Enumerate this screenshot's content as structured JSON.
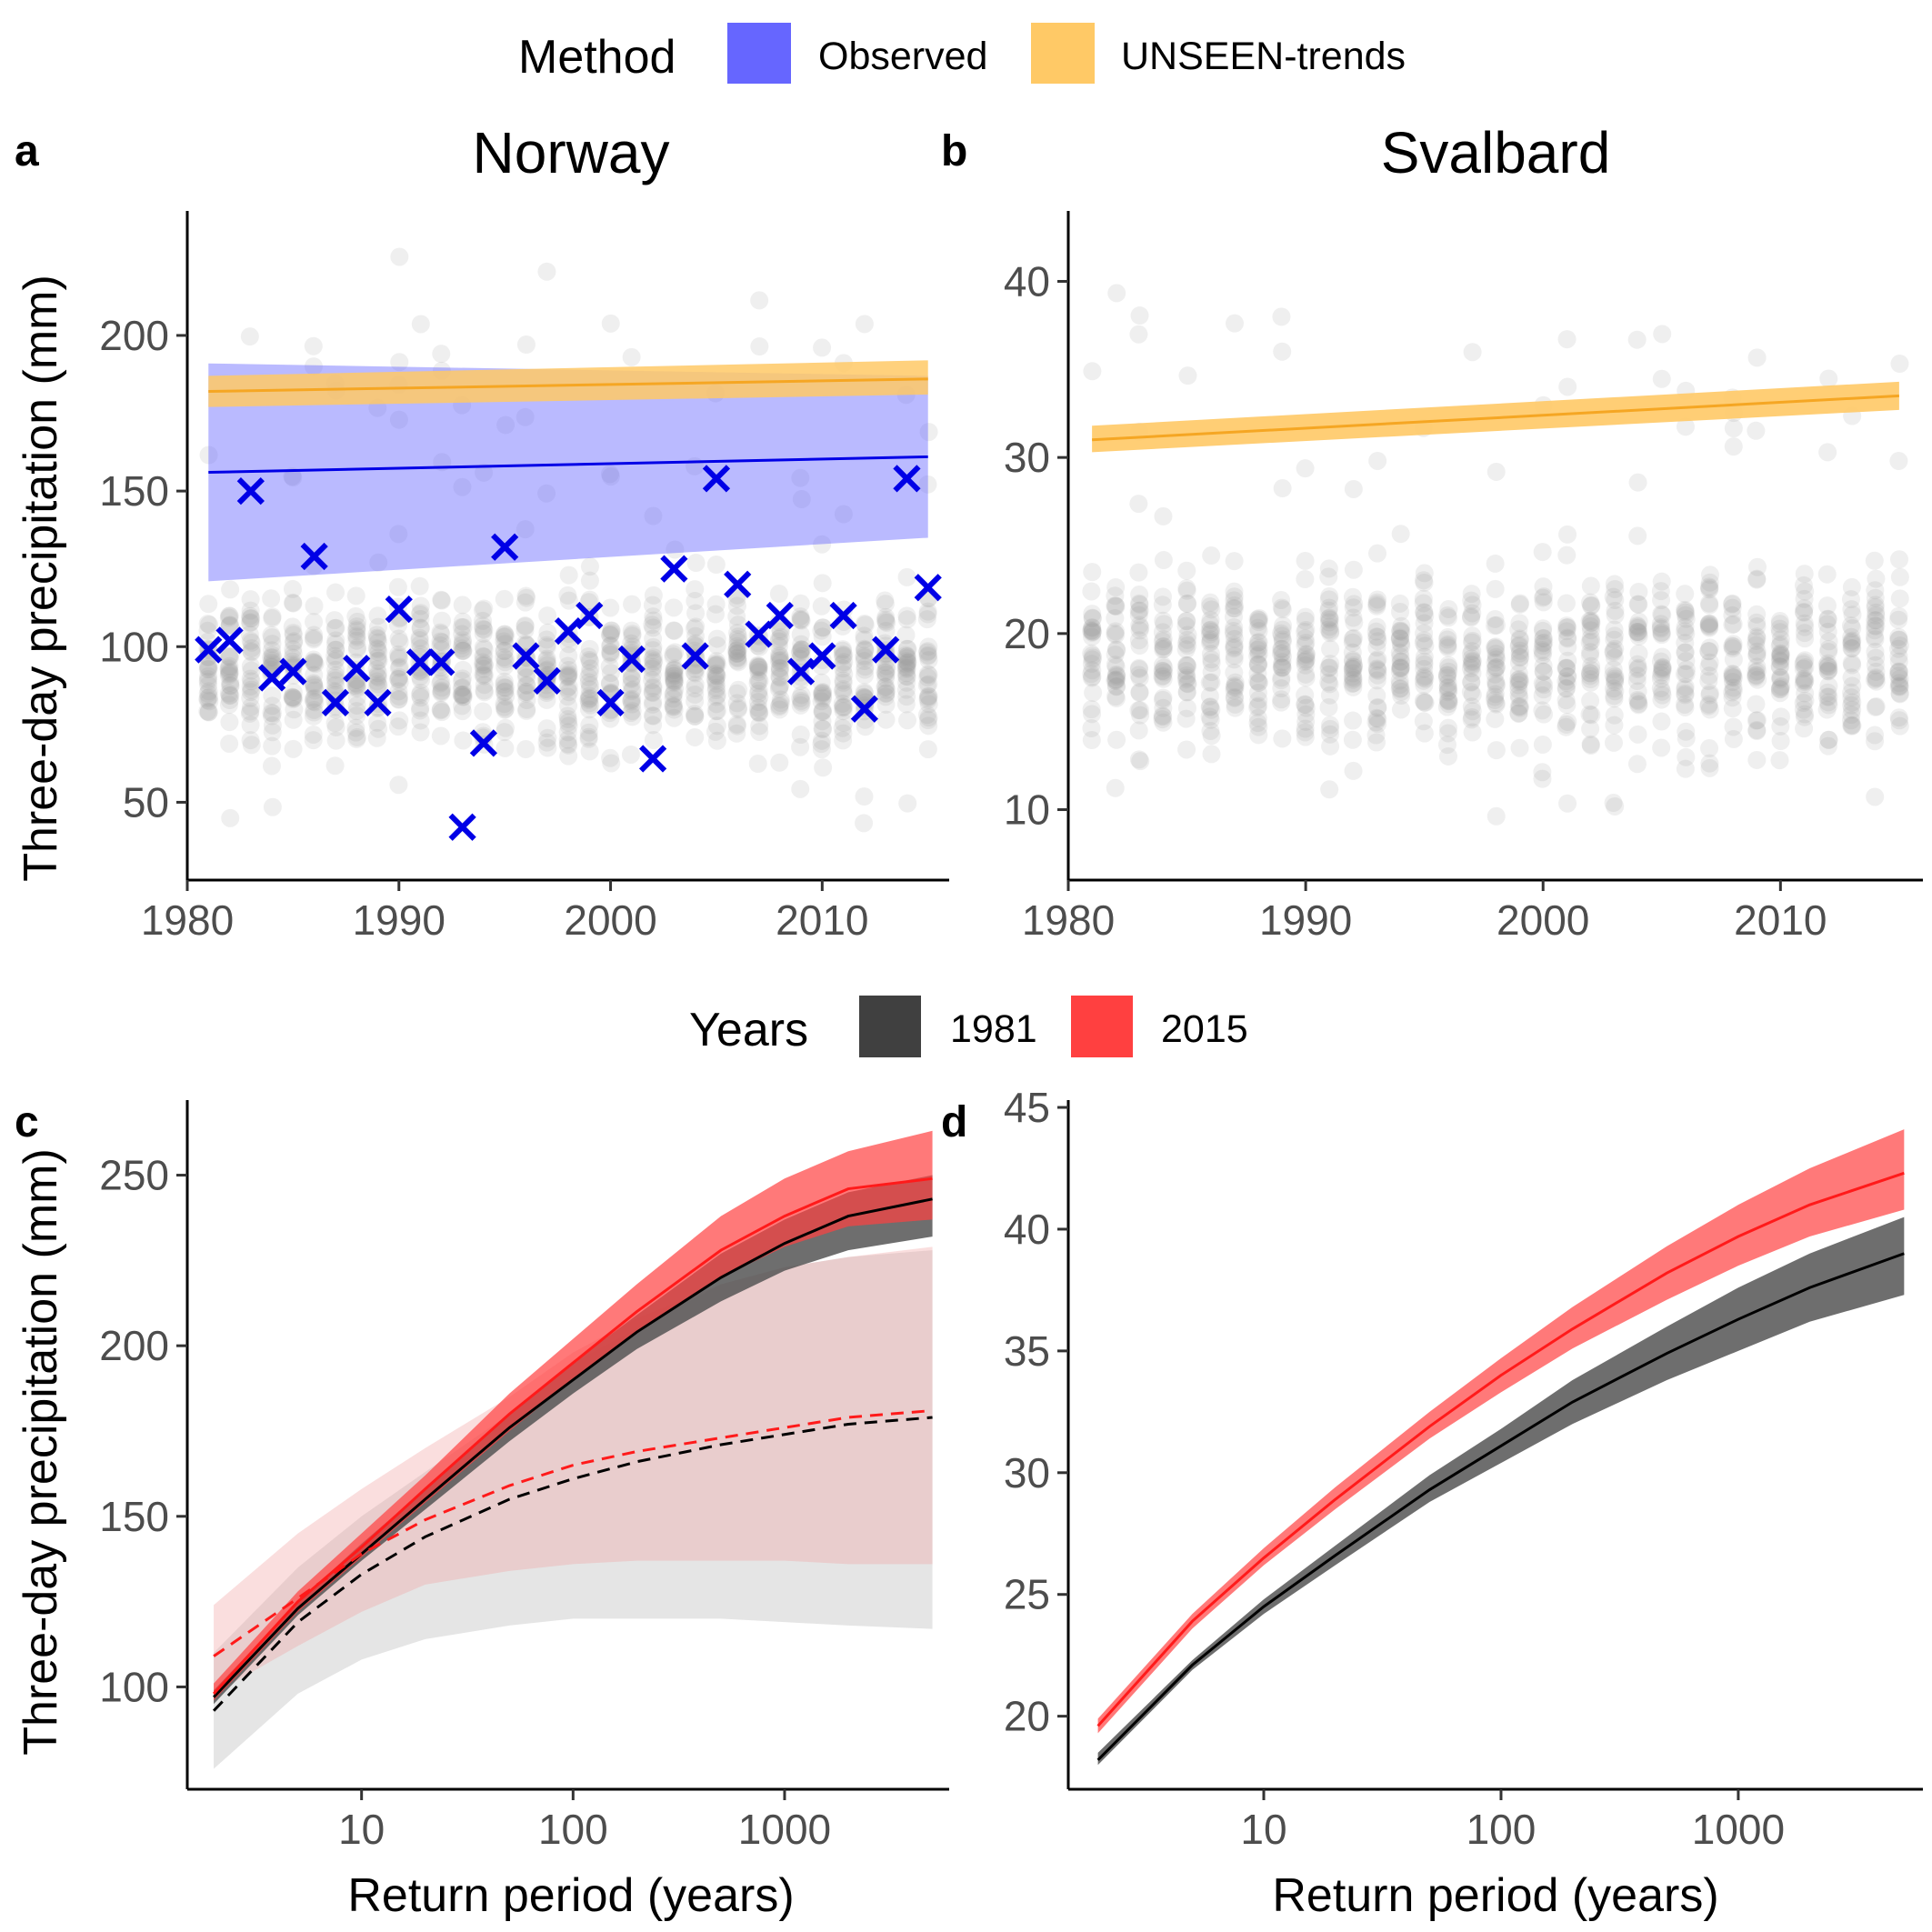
{
  "legend_top": {
    "title": "Method",
    "items": [
      {
        "label": "Observed",
        "color": "#6666ff"
      },
      {
        "label": "UNSEEN-trends",
        "color": "#ffc966"
      }
    ]
  },
  "legend_bottom": {
    "title": "Years",
    "items": [
      {
        "label": "1981",
        "color": "#404040"
      },
      {
        "label": "2015",
        "color": "#ff4040"
      }
    ]
  },
  "panels": {
    "a": {
      "tag": "a",
      "title": "Norway"
    },
    "b": {
      "tag": "b",
      "title": "Svalbard"
    },
    "c": {
      "tag": "c",
      "title": ""
    },
    "d": {
      "tag": "d",
      "title": ""
    }
  },
  "ylabel": "Three-day precipitation (mm)",
  "xlabel_bottom": "Return period (years)",
  "colors": {
    "observed": "#0000e6",
    "observed_band": "#6666ff",
    "unseen": "#f5a623",
    "unseen_band": "#ffc966",
    "y1981": "#000000",
    "y2015": "#ff1a1a",
    "dots": "#9a9a9a"
  },
  "chart_data": [
    {
      "panel": "a",
      "type": "scatter",
      "title": "Norway",
      "xlabel": "",
      "ylabel": "Three-day precipitation (mm)",
      "xlim": [
        1980,
        2016
      ],
      "ylim": [
        25,
        240
      ],
      "xticks": [
        1980,
        1990,
        2000,
        2010
      ],
      "yticks": [
        50,
        100,
        150,
        200
      ],
      "ensemble_cloud": {
        "years": [
          1981,
          2015
        ],
        "typical_range": [
          60,
          130
        ],
        "extreme_range": [
          33,
          233
        ]
      },
      "observed": {
        "x": [
          1981,
          1982,
          1983,
          1984,
          1985,
          1986,
          1987,
          1988,
          1989,
          1990,
          1991,
          1992,
          1993,
          1994,
          1995,
          1996,
          1997,
          1998,
          1999,
          2000,
          2001,
          2002,
          2003,
          2004,
          2005,
          2006,
          2007,
          2008,
          2009,
          2010,
          2011,
          2012,
          2013,
          2014,
          2015
        ],
        "y": [
          99,
          102,
          150,
          90,
          92,
          129,
          82,
          93,
          82,
          112,
          95,
          95,
          42,
          69,
          132,
          97,
          89,
          105,
          110,
          82,
          96,
          64,
          125,
          97,
          154,
          120,
          104,
          110,
          92,
          97,
          110,
          80,
          99,
          154,
          119
        ]
      },
      "series": [
        {
          "name": "Observed",
          "x": [
            1981,
            2015
          ],
          "y": [
            156,
            161
          ],
          "lower": [
            121,
            135
          ],
          "upper": [
            191,
            187
          ]
        },
        {
          "name": "UNSEEN-trends",
          "x": [
            1981,
            2015
          ],
          "y": [
            182,
            186
          ],
          "lower": [
            177,
            181
          ],
          "upper": [
            187,
            192
          ]
        }
      ]
    },
    {
      "panel": "b",
      "type": "scatter",
      "title": "Svalbard",
      "xlabel": "",
      "ylabel": "",
      "xlim": [
        1980,
        2016
      ],
      "ylim": [
        6,
        44
      ],
      "xticks": [
        1980,
        1990,
        2000,
        2010
      ],
      "yticks": [
        10,
        20,
        30,
        40
      ],
      "ensemble_cloud": {
        "years": [
          1981,
          2015
        ],
        "typical_range": [
          11,
          27
        ],
        "extreme_range": [
          7.5,
          42
        ]
      },
      "series": [
        {
          "name": "UNSEEN-trends",
          "x": [
            1981,
            2015
          ],
          "y": [
            31.0,
            33.5
          ],
          "lower": [
            30.3,
            32.7
          ],
          "upper": [
            31.8,
            34.3
          ]
        }
      ]
    },
    {
      "panel": "c",
      "type": "line",
      "title": "",
      "xlabel": "Return period (years)",
      "ylabel": "Three-day precipitation (mm)",
      "xscale": "log",
      "xlim": [
        1.5,
        6000
      ],
      "ylim": [
        70,
        272
      ],
      "xticks": [
        10,
        100,
        1000
      ],
      "yticks": [
        100,
        150,
        200,
        250
      ],
      "x": [
        2,
        5,
        10,
        20,
        50,
        100,
        200,
        500,
        1000,
        2000,
        5000
      ],
      "series": [
        {
          "name": "1981",
          "style": "solid",
          "y": [
            97,
            123,
            139,
            155,
            176,
            190,
            204,
            220,
            230,
            238,
            243
          ],
          "lower": [
            95,
            121,
            137,
            152,
            172,
            186,
            199,
            213,
            222,
            228,
            232
          ],
          "upper": [
            99,
            125,
            142,
            158,
            180,
            195,
            209,
            227,
            237,
            245,
            250
          ]
        },
        {
          "name": "2015",
          "style": "solid",
          "y": [
            98,
            125,
            141,
            158,
            180,
            195,
            210,
            228,
            238,
            246,
            249
          ],
          "lower": [
            96,
            122,
            138,
            154,
            175,
            190,
            204,
            220,
            229,
            235,
            237
          ],
          "upper": [
            101,
            128,
            145,
            162,
            186,
            202,
            218,
            238,
            249,
            257,
            263
          ]
        },
        {
          "name": "1981",
          "style": "dashed",
          "y": [
            93,
            119,
            133,
            144,
            155,
            161,
            166,
            171,
            174,
            177,
            179
          ],
          "lower": [
            76,
            98,
            108,
            114,
            118,
            120,
            120,
            120,
            119,
            118,
            117
          ],
          "upper": [
            110,
            135,
            150,
            163,
            180,
            195,
            205,
            218,
            223,
            226,
            228
          ]
        },
        {
          "name": "2015",
          "style": "dashed",
          "y": [
            109,
            126,
            139,
            149,
            159,
            165,
            169,
            173,
            176,
            179,
            181
          ],
          "lower": [
            98,
            112,
            122,
            130,
            134,
            136,
            137,
            137,
            137,
            136,
            136
          ],
          "upper": [
            124,
            145,
            158,
            170,
            185,
            198,
            208,
            218,
            223,
            226,
            229
          ]
        }
      ]
    },
    {
      "panel": "d",
      "type": "line",
      "title": "",
      "xlabel": "Return period (years)",
      "ylabel": "",
      "xscale": "log",
      "xlim": [
        1.5,
        6000
      ],
      "ylim": [
        17,
        45.3
      ],
      "xticks": [
        10,
        100,
        1000
      ],
      "yticks": [
        20,
        25,
        30,
        35,
        40,
        45
      ],
      "x": [
        2,
        5,
        10,
        20,
        50,
        100,
        200,
        500,
        1000,
        2000,
        5000
      ],
      "series": [
        {
          "name": "1981",
          "y": [
            18.2,
            22.1,
            24.5,
            26.6,
            29.3,
            31.1,
            32.9,
            34.9,
            36.3,
            37.6,
            39.0
          ],
          "lower": [
            18.0,
            21.9,
            24.2,
            26.2,
            28.8,
            30.4,
            32.0,
            33.8,
            35.0,
            36.2,
            37.3
          ],
          "upper": [
            18.5,
            22.3,
            24.8,
            27.0,
            29.9,
            31.8,
            33.8,
            36.0,
            37.6,
            39.0,
            40.5
          ]
        },
        {
          "name": "2015",
          "y": [
            19.6,
            23.9,
            26.5,
            28.9,
            31.9,
            34.0,
            35.9,
            38.2,
            39.7,
            41.0,
            42.3
          ],
          "lower": [
            19.3,
            23.6,
            26.2,
            28.5,
            31.4,
            33.3,
            35.1,
            37.1,
            38.5,
            39.7,
            40.8
          ],
          "upper": [
            19.9,
            24.2,
            26.9,
            29.4,
            32.5,
            34.7,
            36.8,
            39.3,
            41.0,
            42.5,
            44.1
          ]
        }
      ]
    }
  ]
}
